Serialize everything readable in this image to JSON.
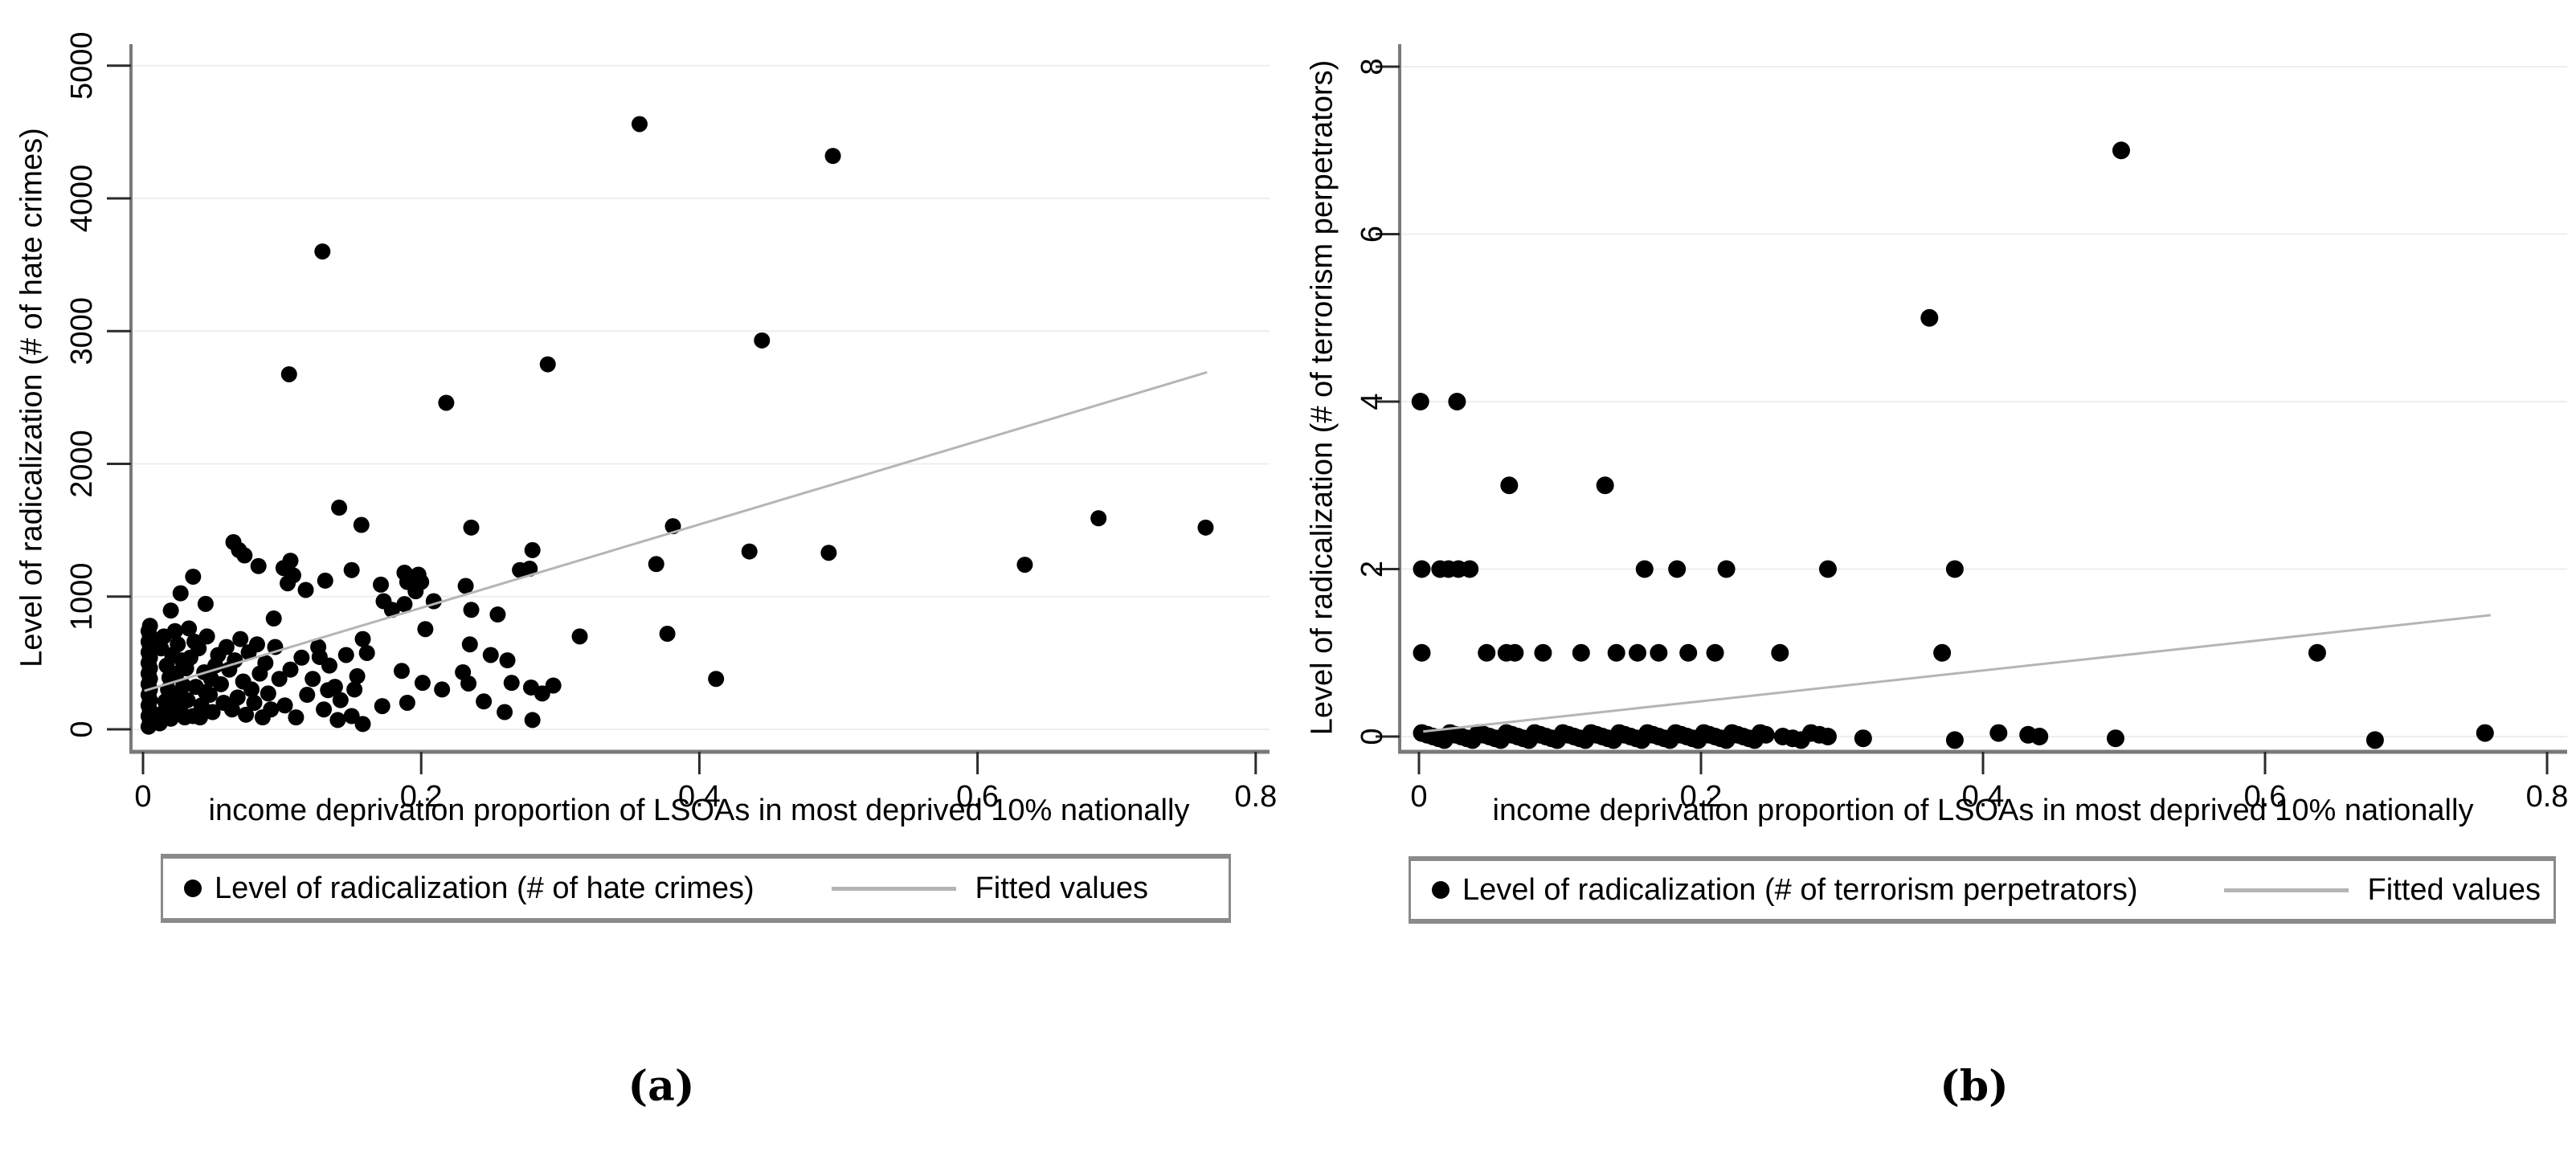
{
  "figure": {
    "captions": {
      "a": "(a)",
      "b": "(b)"
    }
  },
  "colors": {
    "background": "#ffffff",
    "grid": "#e7f0f2",
    "axis": "#7a7a7a",
    "tick": "#2b2b2b",
    "marker": "#000000",
    "fit_line": "#b5b5b5",
    "legend_border": "#8a8a8a",
    "text": "#000000"
  },
  "chart_data": [
    {
      "id": "a",
      "type": "scatter",
      "title": "",
      "xlabel": "income deprivation proportion of LSOAs in most deprived 10% nationally",
      "ylabel": "Level of radicalization (# of hate crimes)",
      "xtick_labels": [
        "0",
        "0.2",
        "0.4",
        "0.6",
        "0.8"
      ],
      "xtick_values": [
        0,
        0.2,
        0.4,
        0.6,
        0.8
      ],
      "ytick_labels": [
        "0",
        "1000",
        "2000",
        "3000",
        "4000",
        "5000"
      ],
      "ytick_values": [
        0,
        1000,
        2000,
        3000,
        4000,
        5000
      ],
      "xlim": [
        0,
        0.82
      ],
      "ylim": [
        0,
        5300
      ],
      "grid": true,
      "legend": {
        "position": "bottom",
        "series_label": "Level of radicalization (# of hate crimes)",
        "fit_label": "Fitted values"
      },
      "fit_line": {
        "x1": 0.001,
        "y1": 290,
        "x2": 0.765,
        "y2": 2690
      },
      "points": [
        [
          0.357,
          4560
        ],
        [
          0.496,
          4320
        ],
        [
          0.129,
          3600
        ],
        [
          0.445,
          2930
        ],
        [
          0.291,
          2750
        ],
        [
          0.105,
          2675
        ],
        [
          0.218,
          2460
        ],
        [
          0.141,
          1670
        ],
        [
          0.157,
          1540
        ],
        [
          0.236,
          1520
        ],
        [
          0.381,
          1530
        ],
        [
          0.28,
          1350
        ],
        [
          0.436,
          1340
        ],
        [
          0.493,
          1330
        ],
        [
          0.065,
          1410
        ],
        [
          0.069,
          1350
        ],
        [
          0.764,
          1520
        ],
        [
          0.687,
          1590
        ],
        [
          0.634,
          1240
        ],
        [
          0.369,
          1245
        ],
        [
          0.073,
          1310
        ],
        [
          0.083,
          1230
        ],
        [
          0.106,
          1270
        ],
        [
          0.108,
          1160
        ],
        [
          0.104,
          1100
        ],
        [
          0.131,
          1120
        ],
        [
          0.117,
          1050
        ],
        [
          0.15,
          1200
        ],
        [
          0.171,
          1090
        ],
        [
          0.188,
          1180
        ],
        [
          0.19,
          1110
        ],
        [
          0.192,
          1150
        ],
        [
          0.196,
          1040
        ],
        [
          0.2,
          1110
        ],
        [
          0.271,
          1200
        ],
        [
          0.278,
          1210
        ],
        [
          0.101,
          1215
        ],
        [
          0.036,
          1150
        ],
        [
          0.027,
          1025
        ],
        [
          0.02,
          895
        ],
        [
          0.045,
          945
        ],
        [
          0.232,
          1080
        ],
        [
          0.198,
          1165
        ],
        [
          0.188,
          943
        ],
        [
          0.209,
          965
        ],
        [
          0.173,
          965
        ],
        [
          0.179,
          900
        ],
        [
          0.236,
          900
        ],
        [
          0.255,
          865
        ],
        [
          0.094,
          835
        ],
        [
          0.314,
          700
        ],
        [
          0.377,
          720
        ],
        [
          0.262,
          520
        ],
        [
          0.234,
          345
        ],
        [
          0.279,
          315
        ],
        [
          0.287,
          270
        ],
        [
          0.412,
          380
        ],
        [
          0.127,
          545
        ],
        [
          0.133,
          295
        ],
        [
          0.152,
          300
        ],
        [
          0.172,
          175
        ],
        [
          0.19,
          200
        ],
        [
          0.14,
          70
        ],
        [
          0.158,
          40
        ],
        [
          0.161,
          575
        ],
        [
          0.203,
          755
        ],
        [
          0.186,
          440
        ],
        [
          0.201,
          350
        ],
        [
          0.215,
          300
        ],
        [
          0.23,
          430
        ],
        [
          0.245,
          210
        ],
        [
          0.26,
          130
        ],
        [
          0.265,
          350
        ],
        [
          0.28,
          70
        ],
        [
          0.295,
          330
        ],
        [
          0.25,
          560
        ],
        [
          0.235,
          640
        ],
        [
          0.004,
          20
        ],
        [
          0.005,
          60
        ],
        [
          0.004,
          100
        ],
        [
          0.005,
          140
        ],
        [
          0.004,
          180
        ],
        [
          0.005,
          220
        ],
        [
          0.004,
          260
        ],
        [
          0.005,
          300
        ],
        [
          0.004,
          340
        ],
        [
          0.005,
          380
        ],
        [
          0.004,
          420
        ],
        [
          0.005,
          460
        ],
        [
          0.004,
          500
        ],
        [
          0.005,
          540
        ],
        [
          0.004,
          580
        ],
        [
          0.005,
          620
        ],
        [
          0.004,
          660
        ],
        [
          0.005,
          700
        ],
        [
          0.004,
          740
        ],
        [
          0.005,
          780
        ],
        [
          0.006,
          90
        ],
        [
          0.006,
          650
        ],
        [
          0.012,
          45
        ],
        [
          0.014,
          120
        ],
        [
          0.016,
          210
        ],
        [
          0.018,
          300
        ],
        [
          0.02,
          80
        ],
        [
          0.022,
          160
        ],
        [
          0.024,
          420
        ],
        [
          0.026,
          250
        ],
        [
          0.028,
          520
        ],
        [
          0.03,
          90
        ],
        [
          0.013,
          610
        ],
        [
          0.017,
          480
        ],
        [
          0.021,
          560
        ],
        [
          0.025,
          640
        ],
        [
          0.029,
          330
        ],
        [
          0.015,
          700
        ],
        [
          0.019,
          390
        ],
        [
          0.023,
          740
        ],
        [
          0.027,
          170
        ],
        [
          0.031,
          460
        ],
        [
          0.032,
          220
        ],
        [
          0.034,
          540
        ],
        [
          0.036,
          100
        ],
        [
          0.038,
          320
        ],
        [
          0.04,
          610
        ],
        [
          0.042,
          180
        ],
        [
          0.044,
          430
        ],
        [
          0.046,
          700
        ],
        [
          0.048,
          260
        ],
        [
          0.05,
          130
        ],
        [
          0.052,
          480
        ],
        [
          0.054,
          560
        ],
        [
          0.056,
          340
        ],
        [
          0.058,
          200
        ],
        [
          0.06,
          620
        ],
        [
          0.033,
          760
        ],
        [
          0.037,
          660
        ],
        [
          0.041,
          90
        ],
        [
          0.045,
          280
        ],
        [
          0.049,
          380
        ],
        [
          0.062,
          450
        ],
        [
          0.064,
          150
        ],
        [
          0.066,
          520
        ],
        [
          0.068,
          240
        ],
        [
          0.07,
          680
        ],
        [
          0.072,
          360
        ],
        [
          0.074,
          110
        ],
        [
          0.076,
          580
        ],
        [
          0.078,
          300
        ],
        [
          0.08,
          200
        ],
        [
          0.082,
          640
        ],
        [
          0.084,
          420
        ],
        [
          0.086,
          90
        ],
        [
          0.088,
          500
        ],
        [
          0.09,
          270
        ],
        [
          0.092,
          150
        ],
        [
          0.095,
          620
        ],
        [
          0.098,
          380
        ],
        [
          0.102,
          180
        ],
        [
          0.106,
          450
        ],
        [
          0.11,
          90
        ],
        [
          0.114,
          540
        ],
        [
          0.118,
          260
        ],
        [
          0.122,
          380
        ],
        [
          0.126,
          620
        ],
        [
          0.13,
          150
        ],
        [
          0.134,
          480
        ],
        [
          0.138,
          320
        ],
        [
          0.142,
          220
        ],
        [
          0.146,
          560
        ],
        [
          0.15,
          100
        ],
        [
          0.154,
          400
        ],
        [
          0.158,
          680
        ]
      ]
    },
    {
      "id": "b",
      "type": "scatter",
      "title": "",
      "xlabel": "income deprivation proportion of LSOAs in most deprived 10% nationally",
      "ylabel": "Level of radicalization (# of terrorism perpetrators)",
      "xtick_labels": [
        "0",
        "0.2",
        "0.4",
        "0.6",
        "0.8"
      ],
      "xtick_values": [
        0,
        0.2,
        0.4,
        0.6,
        0.8
      ],
      "ytick_labels": [
        "0",
        "2",
        "4",
        "6",
        "8"
      ],
      "ytick_values": [
        0,
        2,
        4,
        6,
        8
      ],
      "xlim": [
        0,
        0.82
      ],
      "ylim": [
        0,
        8.3
      ],
      "grid": true,
      "legend": {
        "position": "bottom",
        "series_label": "Level of radicalization (# of terrorism perpetrators)",
        "fit_label": "Fitted values"
      },
      "fit_line": {
        "x1": 0.003,
        "y1": 0.06,
        "x2": 0.76,
        "y2": 1.45
      },
      "points": [
        [
          0.002,
          0
        ],
        [
          0.006,
          0
        ],
        [
          0.01,
          0
        ],
        [
          0.014,
          0
        ],
        [
          0.018,
          0
        ],
        [
          0.022,
          0
        ],
        [
          0.026,
          0
        ],
        [
          0.03,
          0
        ],
        [
          0.034,
          0
        ],
        [
          0.038,
          0
        ],
        [
          0.042,
          0
        ],
        [
          0.046,
          0
        ],
        [
          0.05,
          0
        ],
        [
          0.054,
          0
        ],
        [
          0.058,
          0
        ],
        [
          0.062,
          0
        ],
        [
          0.066,
          0
        ],
        [
          0.07,
          0
        ],
        [
          0.074,
          0
        ],
        [
          0.078,
          0
        ],
        [
          0.082,
          0
        ],
        [
          0.086,
          0
        ],
        [
          0.09,
          0
        ],
        [
          0.094,
          0
        ],
        [
          0.098,
          0
        ],
        [
          0.102,
          0
        ],
        [
          0.106,
          0
        ],
        [
          0.11,
          0
        ],
        [
          0.114,
          0
        ],
        [
          0.118,
          0
        ],
        [
          0.122,
          0
        ],
        [
          0.126,
          0
        ],
        [
          0.13,
          0
        ],
        [
          0.134,
          0
        ],
        [
          0.138,
          0
        ],
        [
          0.142,
          0
        ],
        [
          0.146,
          0
        ],
        [
          0.15,
          0
        ],
        [
          0.154,
          0
        ],
        [
          0.158,
          0
        ],
        [
          0.162,
          0
        ],
        [
          0.166,
          0
        ],
        [
          0.17,
          0
        ],
        [
          0.174,
          0
        ],
        [
          0.178,
          0
        ],
        [
          0.182,
          0
        ],
        [
          0.186,
          0
        ],
        [
          0.19,
          0
        ],
        [
          0.194,
          0
        ],
        [
          0.198,
          0
        ],
        [
          0.202,
          0
        ],
        [
          0.206,
          0
        ],
        [
          0.21,
          0
        ],
        [
          0.214,
          0
        ],
        [
          0.218,
          0
        ],
        [
          0.222,
          0
        ],
        [
          0.226,
          0
        ],
        [
          0.23,
          0
        ],
        [
          0.234,
          0
        ],
        [
          0.238,
          0
        ],
        [
          0.242,
          0
        ],
        [
          0.246,
          0
        ],
        [
          0.258,
          0
        ],
        [
          0.265,
          0
        ],
        [
          0.271,
          0
        ],
        [
          0.278,
          0
        ],
        [
          0.284,
          0
        ],
        [
          0.29,
          0
        ],
        [
          0.315,
          0
        ],
        [
          0.38,
          0
        ],
        [
          0.411,
          0
        ],
        [
          0.432,
          0
        ],
        [
          0.44,
          0
        ],
        [
          0.494,
          0
        ],
        [
          0.678,
          0
        ],
        [
          0.756,
          0
        ],
        [
          0.002,
          1
        ],
        [
          0.048,
          1
        ],
        [
          0.062,
          1
        ],
        [
          0.068,
          1
        ],
        [
          0.088,
          1
        ],
        [
          0.115,
          1
        ],
        [
          0.14,
          1
        ],
        [
          0.155,
          1
        ],
        [
          0.17,
          1
        ],
        [
          0.191,
          1
        ],
        [
          0.21,
          1
        ],
        [
          0.256,
          1
        ],
        [
          0.371,
          1
        ],
        [
          0.637,
          1
        ],
        [
          0.002,
          2
        ],
        [
          0.015,
          2
        ],
        [
          0.021,
          2
        ],
        [
          0.028,
          2
        ],
        [
          0.036,
          2
        ],
        [
          0.16,
          2
        ],
        [
          0.183,
          2
        ],
        [
          0.218,
          2
        ],
        [
          0.29,
          2
        ],
        [
          0.38,
          2
        ],
        [
          0.064,
          3
        ],
        [
          0.132,
          3
        ],
        [
          0.001,
          4
        ],
        [
          0.027,
          4
        ],
        [
          0.362,
          5
        ],
        [
          0.498,
          7
        ]
      ]
    }
  ]
}
